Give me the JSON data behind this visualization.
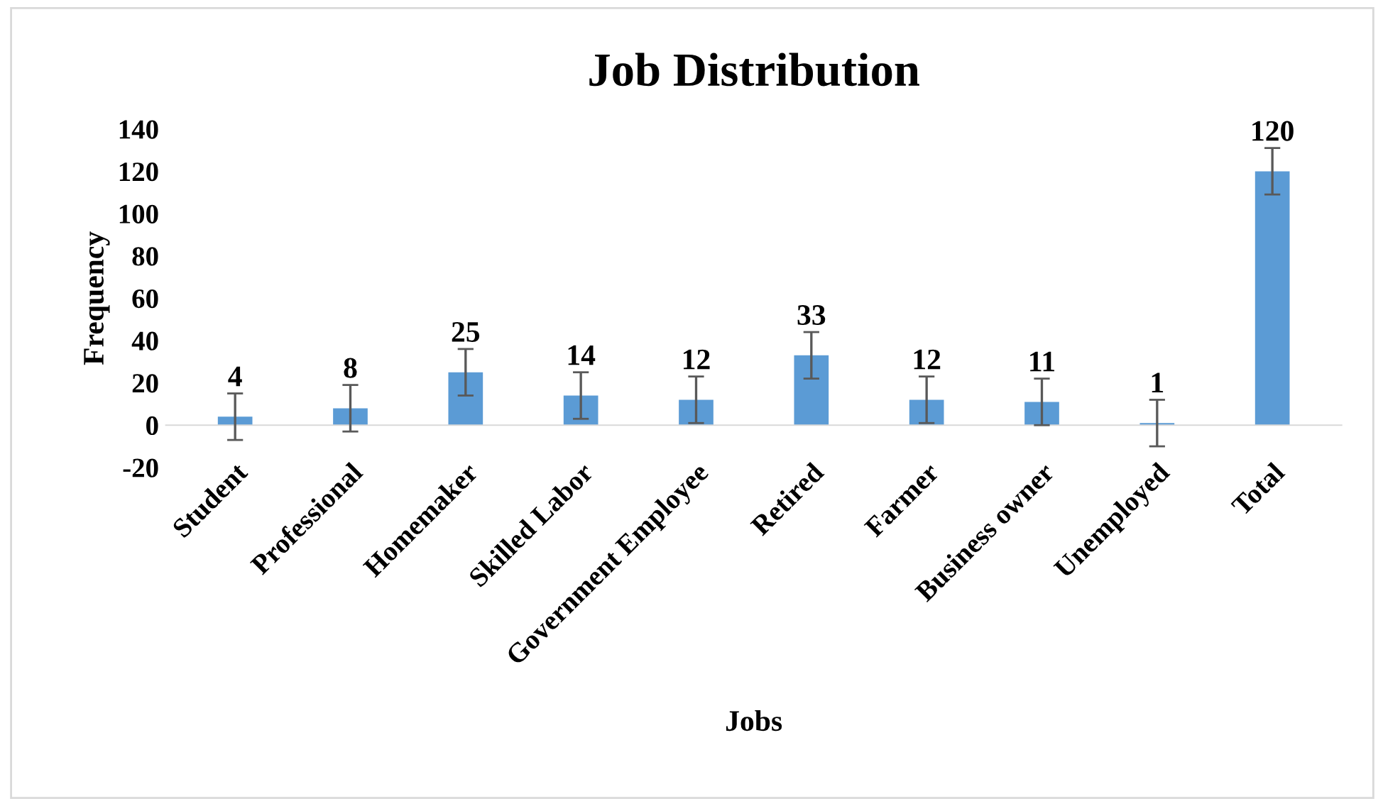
{
  "chart_data": {
    "type": "bar",
    "title": "Job Distribution",
    "xlabel": "Jobs",
    "ylabel": "Frequency",
    "categories": [
      "Student",
      "Professional",
      "Homemaker",
      "Skilled Labor",
      "Government Employee",
      "Retired",
      "Farmer",
      "Business owner",
      "Unemployed",
      "Total"
    ],
    "values": [
      4,
      8,
      25,
      14,
      12,
      33,
      12,
      11,
      1,
      120
    ],
    "errors": [
      11,
      11,
      11,
      11,
      11,
      11,
      11,
      11,
      11,
      11
    ],
    "color": "#5b9bd5",
    "ylim": [
      -20,
      140
    ],
    "yticks": [
      -20,
      0,
      20,
      40,
      60,
      80,
      100,
      120,
      140
    ],
    "data_labels": true,
    "grid": false,
    "legend": false
  }
}
